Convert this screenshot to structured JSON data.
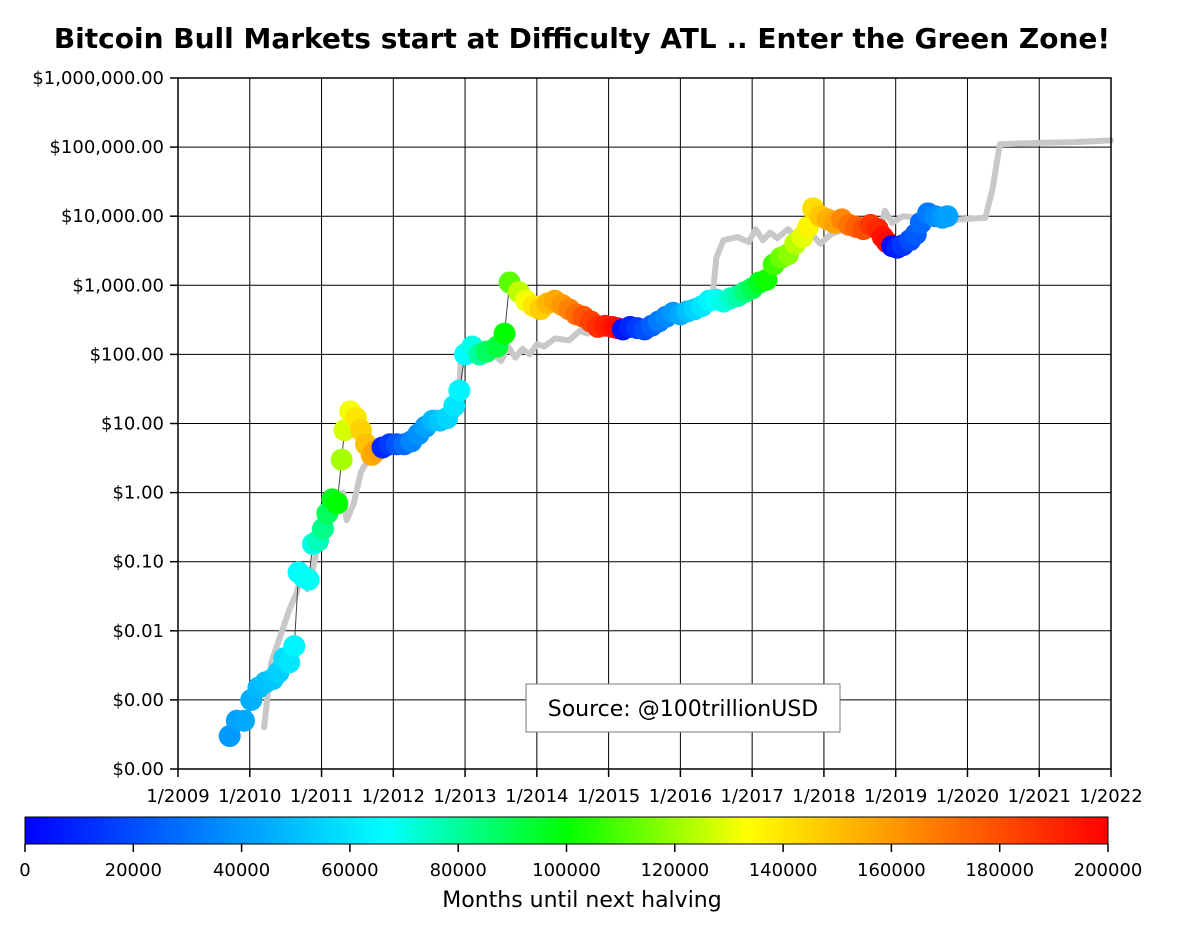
{
  "chart_data": {
    "type": "scatter",
    "title": "Bitcoin Bull Markets start at Difficulty ATL .. Enter the Green Zone!",
    "y_scale": "log",
    "y_ticks": [
      {
        "value": 0.0001,
        "label": "$0.00"
      },
      {
        "value": 0.001,
        "label": "$0.00"
      },
      {
        "value": 0.01,
        "label": "$0.01"
      },
      {
        "value": 0.1,
        "label": "$0.10"
      },
      {
        "value": 1,
        "label": "$1.00"
      },
      {
        "value": 10,
        "label": "$10.00"
      },
      {
        "value": 100,
        "label": "$100.00"
      },
      {
        "value": 1000,
        "label": "$1,000.00"
      },
      {
        "value": 10000,
        "label": "$10,000.00"
      },
      {
        "value": 100000,
        "label": "$100,000.00"
      },
      {
        "value": 1000000,
        "label": "$1,000,000.00"
      }
    ],
    "x_ticks": [
      {
        "value": 2009,
        "label": "1/2009"
      },
      {
        "value": 2010,
        "label": "1/2010"
      },
      {
        "value": 2011,
        "label": "1/2011"
      },
      {
        "value": 2012,
        "label": "1/2012"
      },
      {
        "value": 2013,
        "label": "1/2013"
      },
      {
        "value": 2014,
        "label": "1/2014"
      },
      {
        "value": 2015,
        "label": "1/2015"
      },
      {
        "value": 2016,
        "label": "1/2016"
      },
      {
        "value": 2017,
        "label": "1/2017"
      },
      {
        "value": 2018,
        "label": "1/2018"
      },
      {
        "value": 2019,
        "label": "1/2019"
      },
      {
        "value": 2020,
        "label": "1/2020"
      },
      {
        "value": 2021,
        "label": "1/2021"
      },
      {
        "value": 2022,
        "label": "1/2022"
      }
    ],
    "xlim": [
      2009,
      2022
    ],
    "ylim": [
      0.0001,
      1000000
    ],
    "grid": true,
    "colorbar": {
      "label": "Months until next halving",
      "min": 0,
      "max": 200000,
      "ticks": [
        {
          "value": 0,
          "label": "0"
        },
        {
          "value": 20000,
          "label": "20000"
        },
        {
          "value": 40000,
          "label": "40000"
        },
        {
          "value": 60000,
          "label": "60000"
        },
        {
          "value": 80000,
          "label": "80000"
        },
        {
          "value": 100000,
          "label": "100000"
        },
        {
          "value": 120000,
          "label": "120000"
        },
        {
          "value": 140000,
          "label": "140000"
        },
        {
          "value": 160000,
          "label": "160000"
        },
        {
          "value": 180000,
          "label": "180000"
        },
        {
          "value": 200000,
          "label": "200000"
        }
      ],
      "colors": [
        "#0000ff",
        "#0080ff",
        "#00ffff",
        "#00ff00",
        "#ffff00",
        "#ff8000",
        "#ff0000"
      ]
    },
    "annotation": "Source: @100trillionUSD",
    "series": [
      {
        "kind": "line",
        "color": "#c8c8c8",
        "points": [
          [
            2010.2,
            0.0004
          ],
          [
            2010.3,
            0.0035
          ],
          [
            2010.45,
            0.01
          ],
          [
            2010.55,
            0.02
          ],
          [
            2010.65,
            0.035
          ],
          [
            2010.72,
            0.06
          ],
          [
            2010.8,
            0.04
          ],
          [
            2010.88,
            0.08
          ],
          [
            2011.0,
            0.3
          ],
          [
            2011.1,
            0.6
          ],
          [
            2011.2,
            0.9
          ],
          [
            2011.3,
            1.0
          ],
          [
            2011.35,
            0.4
          ],
          [
            2011.45,
            0.7
          ],
          [
            2011.55,
            2.0
          ],
          [
            2011.65,
            3.0
          ],
          [
            2011.75,
            5.0
          ],
          [
            2011.85,
            4.0
          ],
          [
            2011.95,
            4.5
          ],
          [
            2012.1,
            5.0
          ],
          [
            2012.3,
            6.0
          ],
          [
            2012.5,
            9.0
          ],
          [
            2012.7,
            11.0
          ],
          [
            2012.85,
            12.0
          ],
          [
            2012.9,
            14.0
          ],
          [
            2012.95,
            130
          ],
          [
            2013.05,
            110
          ],
          [
            2013.15,
            150
          ],
          [
            2013.25,
            120
          ],
          [
            2013.4,
            100
          ],
          [
            2013.5,
            80
          ],
          [
            2013.6,
            130
          ],
          [
            2013.7,
            90
          ],
          [
            2013.8,
            120
          ],
          [
            2013.9,
            100
          ],
          [
            2014.0,
            140
          ],
          [
            2014.1,
            130
          ],
          [
            2014.25,
            170
          ],
          [
            2014.45,
            160
          ],
          [
            2014.6,
            220
          ],
          [
            2014.7,
            200
          ],
          [
            2014.8,
            260
          ],
          [
            2015.0,
            320
          ],
          [
            2015.2,
            290
          ],
          [
            2015.4,
            260
          ],
          [
            2015.55,
            280
          ],
          [
            2015.75,
            300
          ],
          [
            2016.0,
            400
          ],
          [
            2016.25,
            500
          ],
          [
            2016.45,
            700
          ],
          [
            2016.5,
            2500
          ],
          [
            2016.6,
            4500
          ],
          [
            2016.8,
            5000
          ],
          [
            2016.95,
            4200
          ],
          [
            2017.05,
            6500
          ],
          [
            2017.15,
            4500
          ],
          [
            2017.25,
            5800
          ],
          [
            2017.35,
            4800
          ],
          [
            2017.5,
            6500
          ],
          [
            2017.65,
            4500
          ],
          [
            2017.8,
            6000
          ],
          [
            2017.95,
            4000
          ],
          [
            2018.1,
            5500
          ],
          [
            2018.3,
            6500
          ],
          [
            2018.5,
            7500
          ],
          [
            2018.7,
            8000
          ],
          [
            2018.8,
            7000
          ],
          [
            2018.85,
            12000
          ],
          [
            2018.95,
            8000
          ],
          [
            2019.1,
            10000
          ],
          [
            2019.3,
            9500
          ],
          [
            2019.5,
            9000
          ],
          [
            2019.7,
            8500
          ],
          [
            2019.9,
            9000
          ],
          [
            2020.25,
            9500
          ],
          [
            2020.35,
            25000
          ],
          [
            2020.45,
            110000
          ],
          [
            2021.0,
            115000
          ],
          [
            2021.5,
            118000
          ],
          [
            2022.0,
            125000
          ]
        ]
      },
      {
        "kind": "scatter",
        "points": [
          [
            2009.72,
            0.0003,
            40000
          ],
          [
            2009.82,
            0.0005,
            42000
          ],
          [
            2009.92,
            0.0005,
            44000
          ],
          [
            2010.02,
            0.001,
            46000
          ],
          [
            2010.12,
            0.0015,
            48000
          ],
          [
            2010.22,
            0.0018,
            50000
          ],
          [
            2010.32,
            0.002,
            52000
          ],
          [
            2010.4,
            0.0025,
            54000
          ],
          [
            2010.48,
            0.004,
            58000
          ],
          [
            2010.55,
            0.0035,
            60000
          ],
          [
            2010.62,
            0.006,
            64000
          ],
          [
            2010.68,
            0.07,
            66000
          ],
          [
            2010.75,
            0.06,
            67000
          ],
          [
            2010.82,
            0.055,
            68000
          ],
          [
            2010.88,
            0.18,
            70000
          ],
          [
            2010.95,
            0.2,
            76000
          ],
          [
            2011.02,
            0.3,
            82000
          ],
          [
            2011.08,
            0.5,
            88000
          ],
          [
            2011.15,
            0.8,
            96000
          ],
          [
            2011.22,
            0.7,
            100000
          ],
          [
            2011.28,
            3.0,
            122000
          ],
          [
            2011.32,
            8.0,
            128000
          ],
          [
            2011.4,
            15.0,
            132000
          ],
          [
            2011.48,
            12.0,
            140000
          ],
          [
            2011.55,
            8.0,
            145000
          ],
          [
            2011.62,
            5.0,
            150000
          ],
          [
            2011.7,
            3.5,
            155000
          ],
          [
            2011.76,
            4.0,
            158000
          ],
          [
            2011.85,
            4.5,
            10000
          ],
          [
            2011.95,
            5.0,
            15000
          ],
          [
            2012.05,
            5.0,
            22000
          ],
          [
            2012.15,
            5.0,
            28000
          ],
          [
            2012.25,
            5.5,
            34000
          ],
          [
            2012.35,
            7.0,
            38000
          ],
          [
            2012.45,
            9.0,
            42000
          ],
          [
            2012.55,
            11.0,
            48000
          ],
          [
            2012.65,
            11.0,
            52000
          ],
          [
            2012.75,
            12.0,
            56000
          ],
          [
            2012.85,
            18.0,
            60000
          ],
          [
            2012.92,
            30.0,
            64000
          ],
          [
            2013.0,
            100,
            66000
          ],
          [
            2013.1,
            130,
            70000
          ],
          [
            2013.2,
            100,
            80000
          ],
          [
            2013.3,
            110,
            88000
          ],
          [
            2013.45,
            130,
            92000
          ],
          [
            2013.55,
            200,
            100000
          ],
          [
            2013.62,
            1100,
            112000
          ],
          [
            2013.75,
            800,
            125000
          ],
          [
            2013.85,
            600,
            132000
          ],
          [
            2013.95,
            500,
            140000
          ],
          [
            2014.05,
            450,
            146000
          ],
          [
            2014.15,
            550,
            152000
          ],
          [
            2014.25,
            600,
            156000
          ],
          [
            2014.35,
            520,
            160000
          ],
          [
            2014.45,
            450,
            166000
          ],
          [
            2014.55,
            380,
            172000
          ],
          [
            2014.65,
            350,
            178000
          ],
          [
            2014.75,
            300,
            183000
          ],
          [
            2014.85,
            250,
            188000
          ],
          [
            2014.95,
            260,
            192000
          ],
          [
            2015.05,
            250,
            195000
          ],
          [
            2015.12,
            240,
            198000
          ],
          [
            2015.2,
            230,
            5000
          ],
          [
            2015.3,
            250,
            10000
          ],
          [
            2015.4,
            240,
            15000
          ],
          [
            2015.5,
            230,
            20000
          ],
          [
            2015.6,
            260,
            25000
          ],
          [
            2015.7,
            300,
            32000
          ],
          [
            2015.8,
            350,
            36000
          ],
          [
            2015.9,
            400,
            40000
          ],
          [
            2016.0,
            380,
            44000
          ],
          [
            2016.1,
            420,
            50000
          ],
          [
            2016.2,
            450,
            55000
          ],
          [
            2016.3,
            500,
            60000
          ],
          [
            2016.4,
            600,
            64000
          ],
          [
            2016.5,
            620,
            68000
          ],
          [
            2016.6,
            580,
            70000
          ],
          [
            2016.7,
            650,
            74000
          ],
          [
            2016.8,
            700,
            78000
          ],
          [
            2016.9,
            800,
            84000
          ],
          [
            2017.0,
            900,
            90000
          ],
          [
            2017.1,
            1100,
            96000
          ],
          [
            2017.2,
            1200,
            102000
          ],
          [
            2017.3,
            2000,
            108000
          ],
          [
            2017.4,
            2500,
            114000
          ],
          [
            2017.5,
            2800,
            118000
          ],
          [
            2017.6,
            4000,
            124000
          ],
          [
            2017.7,
            5000,
            130000
          ],
          [
            2017.78,
            7000,
            136000
          ],
          [
            2017.85,
            13000,
            142000
          ],
          [
            2017.95,
            10000,
            148000
          ],
          [
            2018.05,
            9000,
            154000
          ],
          [
            2018.15,
            8000,
            158000
          ],
          [
            2018.25,
            9000,
            165000
          ],
          [
            2018.35,
            7500,
            170000
          ],
          [
            2018.45,
            7000,
            175000
          ],
          [
            2018.55,
            6500,
            180000
          ],
          [
            2018.65,
            7500,
            186000
          ],
          [
            2018.75,
            6500,
            190000
          ],
          [
            2018.82,
            5000,
            195000
          ],
          [
            2018.88,
            4200,
            198000
          ],
          [
            2018.95,
            3700,
            3000
          ],
          [
            2019.02,
            3500,
            8000
          ],
          [
            2019.1,
            3800,
            14000
          ],
          [
            2019.2,
            4500,
            20000
          ],
          [
            2019.28,
            5500,
            24000
          ],
          [
            2019.35,
            8000,
            28000
          ],
          [
            2019.45,
            11000,
            32000
          ],
          [
            2019.55,
            10000,
            36000
          ],
          [
            2019.65,
            9500,
            40000
          ],
          [
            2019.72,
            10000,
            42000
          ]
        ]
      }
    ]
  }
}
